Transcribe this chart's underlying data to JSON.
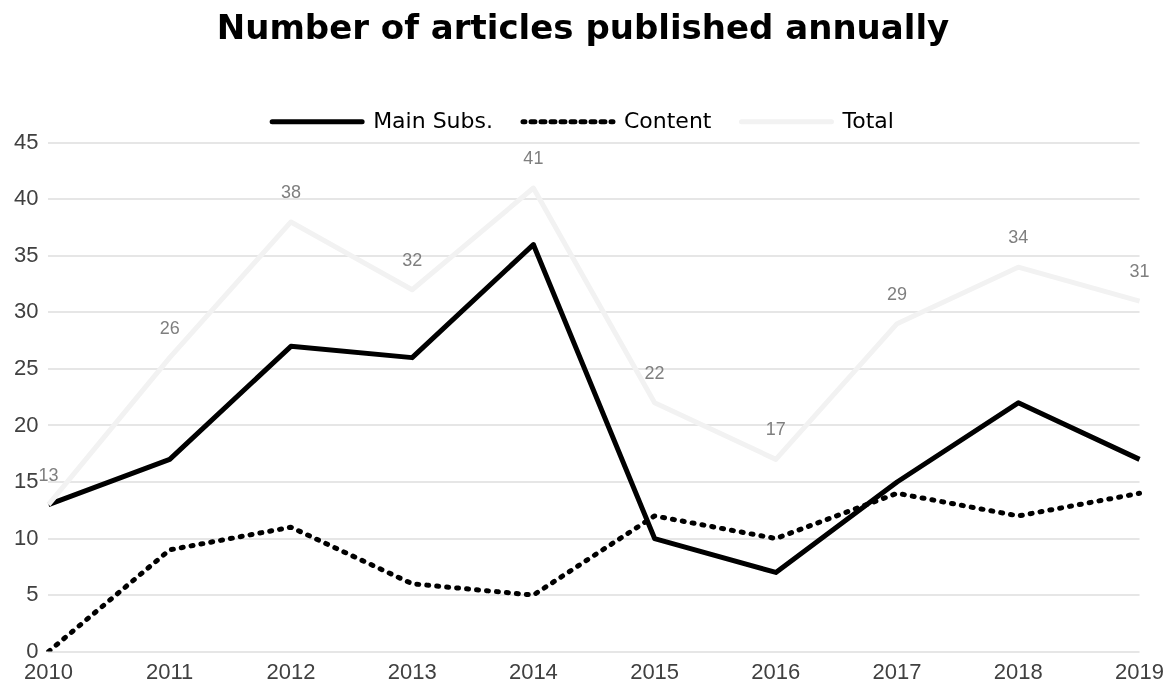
{
  "chart_data": {
    "type": "line",
    "title": "Number of articles published annually",
    "categories": [
      "2010",
      "2011",
      "2012",
      "2013",
      "2014",
      "2015",
      "2016",
      "2017",
      "2018",
      "2019"
    ],
    "series": [
      {
        "name": "Main Subs.",
        "color": "#000000",
        "line_style": "solid",
        "values": [
          13,
          17,
          27,
          26,
          36,
          10,
          7,
          15,
          22,
          17
        ]
      },
      {
        "name": "Content",
        "color": "#000000",
        "line_style": "dotted",
        "values": [
          0,
          9,
          11,
          6,
          5,
          12,
          10,
          14,
          12,
          14
        ]
      },
      {
        "name": "Total",
        "color": "#f2f2f2",
        "line_style": "solid",
        "values": [
          13,
          26,
          38,
          32,
          41,
          22,
          17,
          29,
          34,
          31
        ],
        "value_labels": [
          "13",
          "26",
          "38",
          "32",
          "41",
          "22",
          "17",
          "29",
          "34",
          "31"
        ]
      }
    ],
    "ylim": [
      0,
      45
    ],
    "yticks": [
      0,
      5,
      10,
      15,
      20,
      25,
      30,
      35,
      40,
      45
    ],
    "grid": "y",
    "legend": "top",
    "marker": "none"
  }
}
